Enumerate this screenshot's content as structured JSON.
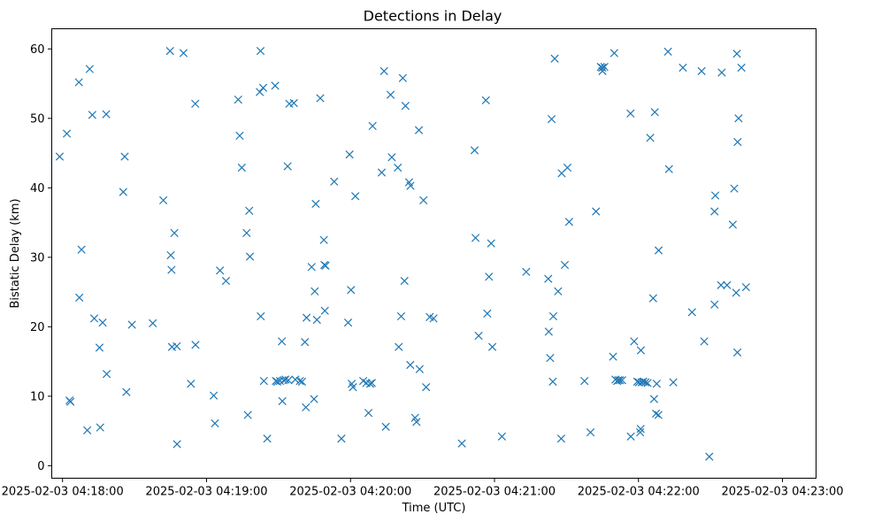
{
  "chart_data": {
    "type": "scatter",
    "title": "Detections in Delay",
    "xlabel": "Time (UTC)",
    "ylabel": "Bistatic Delay (km)",
    "marker": "x",
    "color": "#1f77b4",
    "x_unit": "seconds after 2025-02-03 04:18:00",
    "xlim": [
      -4.5,
      314.0
    ],
    "ylim": [
      -1.8,
      62.9
    ],
    "x_ticks": [
      {
        "value": 0,
        "label": "2025-02-03 04:18:00"
      },
      {
        "value": 60,
        "label": "2025-02-03 04:19:00"
      },
      {
        "value": 120,
        "label": "2025-02-03 04:20:00"
      },
      {
        "value": 180,
        "label": "2025-02-03 04:21:00"
      },
      {
        "value": 240,
        "label": "2025-02-03 04:22:00"
      },
      {
        "value": 300,
        "label": "2025-02-03 04:23:00"
      }
    ],
    "y_ticks": [
      {
        "value": 0,
        "label": "0"
      },
      {
        "value": 10,
        "label": "10"
      },
      {
        "value": 20,
        "label": "20"
      },
      {
        "value": 30,
        "label": "30"
      },
      {
        "value": 40,
        "label": "40"
      },
      {
        "value": 50,
        "label": "50"
      },
      {
        "value": 60,
        "label": "60"
      }
    ],
    "points": [
      [
        -1.2,
        44.5
      ],
      [
        1.8,
        47.8
      ],
      [
        2.9,
        9.4
      ],
      [
        3.3,
        9.2
      ],
      [
        6.8,
        55.2
      ],
      [
        7.0,
        24.2
      ],
      [
        7.9,
        31.1
      ],
      [
        10.3,
        5.1
      ],
      [
        11.3,
        57.1
      ],
      [
        12.4,
        50.5
      ],
      [
        13.2,
        21.2
      ],
      [
        15.4,
        17.0
      ],
      [
        15.7,
        5.5
      ],
      [
        16.7,
        20.6
      ],
      [
        18.2,
        50.6
      ],
      [
        18.4,
        13.2
      ],
      [
        25.3,
        39.4
      ],
      [
        25.9,
        44.5
      ],
      [
        26.6,
        10.6
      ],
      [
        28.9,
        20.3
      ],
      [
        37.6,
        20.5
      ],
      [
        42.0,
        38.2
      ],
      [
        44.8,
        59.7
      ],
      [
        45.1,
        30.3
      ],
      [
        45.4,
        28.2
      ],
      [
        45.6,
        17.1
      ],
      [
        46.6,
        33.5
      ],
      [
        47.6,
        17.2
      ],
      [
        47.7,
        3.1
      ],
      [
        50.4,
        59.4
      ],
      [
        53.5,
        11.8
      ],
      [
        55.3,
        52.1
      ],
      [
        55.4,
        17.4
      ],
      [
        63.0,
        10.1
      ],
      [
        63.5,
        6.1
      ],
      [
        65.6,
        28.1
      ],
      [
        68.1,
        26.6
      ],
      [
        73.2,
        52.7
      ],
      [
        73.8,
        47.5
      ],
      [
        74.7,
        42.9
      ],
      [
        76.7,
        33.5
      ],
      [
        77.2,
        7.3
      ],
      [
        77.8,
        36.7
      ],
      [
        78.1,
        30.1
      ],
      [
        82.2,
        53.8
      ],
      [
        82.5,
        59.7
      ],
      [
        82.6,
        21.5
      ],
      [
        83.6,
        54.4
      ],
      [
        83.9,
        12.2
      ],
      [
        85.3,
        3.9
      ],
      [
        88.6,
        54.7
      ],
      [
        88.9,
        12.2
      ],
      [
        89.5,
        12.1
      ],
      [
        90.6,
        12.2
      ],
      [
        91.4,
        17.9
      ],
      [
        91.6,
        9.3
      ],
      [
        92.2,
        12.3
      ],
      [
        92.9,
        12.4
      ],
      [
        93.8,
        43.1
      ],
      [
        94.1,
        12.3
      ],
      [
        94.5,
        52.1
      ],
      [
        96.4,
        52.2
      ],
      [
        97.0,
        12.4
      ],
      [
        98.9,
        12.2
      ],
      [
        99.8,
        12.1
      ],
      [
        101.0,
        17.8
      ],
      [
        101.4,
        8.4
      ],
      [
        101.7,
        21.3
      ],
      [
        103.8,
        28.6
      ],
      [
        104.8,
        9.6
      ],
      [
        105.1,
        25.1
      ],
      [
        105.5,
        37.7
      ],
      [
        106.0,
        21.0
      ],
      [
        107.4,
        52.9
      ],
      [
        108.9,
        32.5
      ],
      [
        109.1,
        28.9
      ],
      [
        109.3,
        22.3
      ],
      [
        109.6,
        28.8
      ],
      [
        113.2,
        40.9
      ],
      [
        116.2,
        3.9
      ],
      [
        119.0,
        20.6
      ],
      [
        119.6,
        44.8
      ],
      [
        120.2,
        25.3
      ],
      [
        120.5,
        11.8
      ],
      [
        121.0,
        11.3
      ],
      [
        122.0,
        38.8
      ],
      [
        125.3,
        12.2
      ],
      [
        126.6,
        11.9
      ],
      [
        127.5,
        7.6
      ],
      [
        128.2,
        11.8
      ],
      [
        128.9,
        11.9
      ],
      [
        129.2,
        48.9
      ],
      [
        133.0,
        42.2
      ],
      [
        134.0,
        56.8
      ],
      [
        134.7,
        5.6
      ],
      [
        136.7,
        53.4
      ],
      [
        137.2,
        44.4
      ],
      [
        139.7,
        42.9
      ],
      [
        140.1,
        17.1
      ],
      [
        141.1,
        21.5
      ],
      [
        141.8,
        55.8
      ],
      [
        142.5,
        26.6
      ],
      [
        142.9,
        51.8
      ],
      [
        144.4,
        40.8
      ],
      [
        144.9,
        14.5
      ],
      [
        145.0,
        40.3
      ],
      [
        146.9,
        6.9
      ],
      [
        147.5,
        6.3
      ],
      [
        148.5,
        48.3
      ],
      [
        148.8,
        13.9
      ],
      [
        150.4,
        38.2
      ],
      [
        151.5,
        11.3
      ],
      [
        153.0,
        21.4
      ],
      [
        154.6,
        21.2
      ],
      [
        166.4,
        3.2
      ],
      [
        171.7,
        45.4
      ],
      [
        172.1,
        32.8
      ],
      [
        173.4,
        18.7
      ],
      [
        176.4,
        52.6
      ],
      [
        177.0,
        21.9
      ],
      [
        177.7,
        27.2
      ],
      [
        178.6,
        32.0
      ],
      [
        179.1,
        17.1
      ],
      [
        183.1,
        4.2
      ],
      [
        193.2,
        27.9
      ],
      [
        202.4,
        26.9
      ],
      [
        202.6,
        19.3
      ],
      [
        203.2,
        15.5
      ],
      [
        203.8,
        49.9
      ],
      [
        204.3,
        12.1
      ],
      [
        204.5,
        21.5
      ],
      [
        205.1,
        58.6
      ],
      [
        206.5,
        25.1
      ],
      [
        207.8,
        3.9
      ],
      [
        208.0,
        42.1
      ],
      [
        209.3,
        28.9
      ],
      [
        210.4,
        42.9
      ],
      [
        211.1,
        35.1
      ],
      [
        217.5,
        12.2
      ],
      [
        220.0,
        4.8
      ],
      [
        222.3,
        36.6
      ],
      [
        224.3,
        57.4
      ],
      [
        224.9,
        57.3
      ],
      [
        225.0,
        56.8
      ],
      [
        225.8,
        57.4
      ],
      [
        229.4,
        15.7
      ],
      [
        229.9,
        59.4
      ],
      [
        230.4,
        12.4
      ],
      [
        231.1,
        12.2
      ],
      [
        231.6,
        12.3
      ],
      [
        232.3,
        12.3
      ],
      [
        233.2,
        12.3
      ],
      [
        236.7,
        50.7
      ],
      [
        236.8,
        4.2
      ],
      [
        238.2,
        17.9
      ],
      [
        239.5,
        12.1
      ],
      [
        240.2,
        12.0
      ],
      [
        240.7,
        4.8
      ],
      [
        240.9,
        5.3
      ],
      [
        241.0,
        16.6
      ],
      [
        241.3,
        12.0
      ],
      [
        242.0,
        12.1
      ],
      [
        242.9,
        12.0
      ],
      [
        243.8,
        11.9
      ],
      [
        244.9,
        47.2
      ],
      [
        246.1,
        24.1
      ],
      [
        246.5,
        9.6
      ],
      [
        246.8,
        50.9
      ],
      [
        247.3,
        7.5
      ],
      [
        247.6,
        11.8
      ],
      [
        248.3,
        7.3
      ],
      [
        248.4,
        31.0
      ],
      [
        252.3,
        59.6
      ],
      [
        252.7,
        42.7
      ],
      [
        254.5,
        12.0
      ],
      [
        258.5,
        57.3
      ],
      [
        262.3,
        22.1
      ],
      [
        266.3,
        56.8
      ],
      [
        267.4,
        17.9
      ],
      [
        269.5,
        1.3
      ],
      [
        271.7,
        23.2
      ],
      [
        271.7,
        36.6
      ],
      [
        272.0,
        38.9
      ],
      [
        274.4,
        26.0
      ],
      [
        274.7,
        56.6
      ],
      [
        276.9,
        26.0
      ],
      [
        279.3,
        34.7
      ],
      [
        279.9,
        39.9
      ],
      [
        280.7,
        24.9
      ],
      [
        281.0,
        59.3
      ],
      [
        281.2,
        16.3
      ],
      [
        281.3,
        46.6
      ],
      [
        281.7,
        50.0
      ],
      [
        282.9,
        57.3
      ],
      [
        284.8,
        25.7
      ]
    ]
  }
}
